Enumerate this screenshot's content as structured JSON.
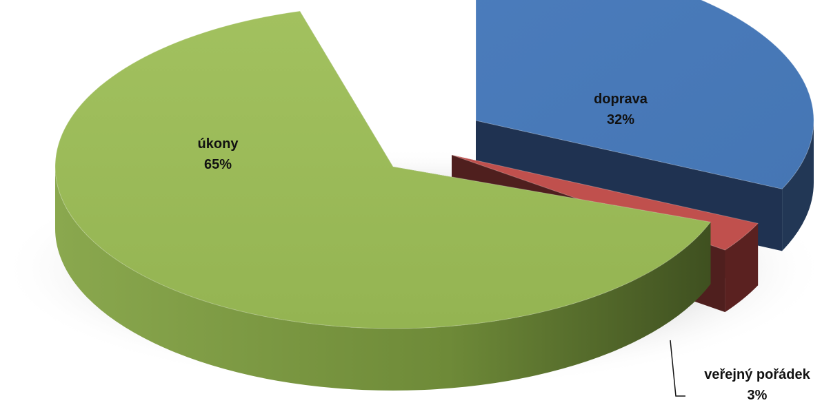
{
  "chart_data": {
    "type": "pie",
    "style": "3d-exploded",
    "slices": [
      {
        "label": "úkony",
        "percent_label": "65%",
        "value": 65,
        "color": "#9BBB59"
      },
      {
        "label": "doprava",
        "percent_label": "32%",
        "value": 32,
        "color": "#4F81BD"
      },
      {
        "label": "veřejný pořádek",
        "percent_label": "3%",
        "value": 3,
        "color": "#C0504D"
      }
    ],
    "legend": "none",
    "title": ""
  }
}
